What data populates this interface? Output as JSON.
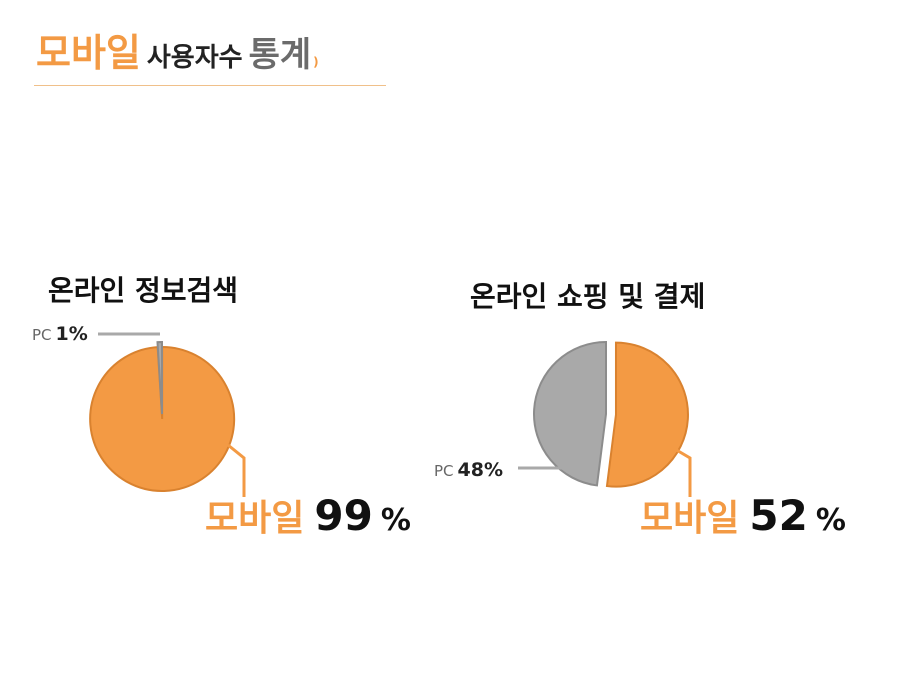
{
  "header": {
    "title_highlight": "모바일",
    "title_mid": "사용자수",
    "title_end": "통계",
    "title_paren": ")"
  },
  "colors": {
    "mobile": "#f39a44",
    "mobile_edge": "#d9822f",
    "pc": "#a9a9a9",
    "pc_edge": "#8c8c8c"
  },
  "chart_data": [
    {
      "type": "pie",
      "title": "온라인 정보검색",
      "slices": [
        {
          "label": "PC",
          "value": 1,
          "value_text": "1%"
        },
        {
          "label": "모바일",
          "value": 99,
          "value_text": "99",
          "unit": "%"
        }
      ]
    },
    {
      "type": "pie",
      "title": "온라인 쇼핑 및 결제",
      "slices": [
        {
          "label": "PC",
          "value": 48,
          "value_text": "48%"
        },
        {
          "label": "모바일",
          "value": 52,
          "value_text": "52",
          "unit": "%"
        }
      ]
    }
  ]
}
